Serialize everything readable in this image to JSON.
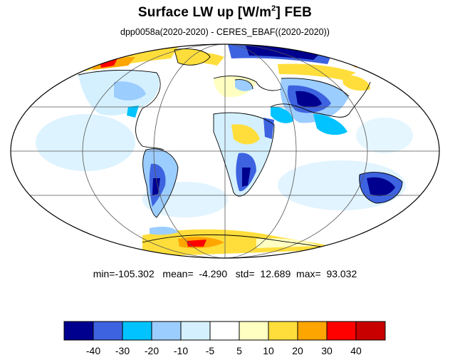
{
  "title": {
    "main": "Surface LW up [W/m",
    "sup": "2",
    "tail": "]  FEB"
  },
  "subtitle": "dpp0058a(2020-2020) - CERES_EBAF((2020-2020))",
  "stats": {
    "min_label": "min=",
    "min_value": "-105.302",
    "mean_label": "mean=",
    "mean_value": "-4.290",
    "std_label": "std=",
    "std_value": "12.689",
    "max_label": "max=",
    "max_value": "93.032"
  },
  "map": {
    "projection": "mollweide",
    "ocean_background": "#ffffff",
    "coastline_color": "#000000",
    "graticule_color": "#555555"
  },
  "colorbar": {
    "colors": [
      "#00008f",
      "#3d63e0",
      "#00c3ff",
      "#9ccdff",
      "#d4f0ff",
      "#ffffff",
      "#ffffc2",
      "#ffde3c",
      "#ffa500",
      "#ff0000",
      "#c80000"
    ],
    "tick_labels": [
      "-40",
      "-30",
      "-20",
      "-10",
      "-5",
      "5",
      "10",
      "20",
      "30",
      "40"
    ]
  }
}
